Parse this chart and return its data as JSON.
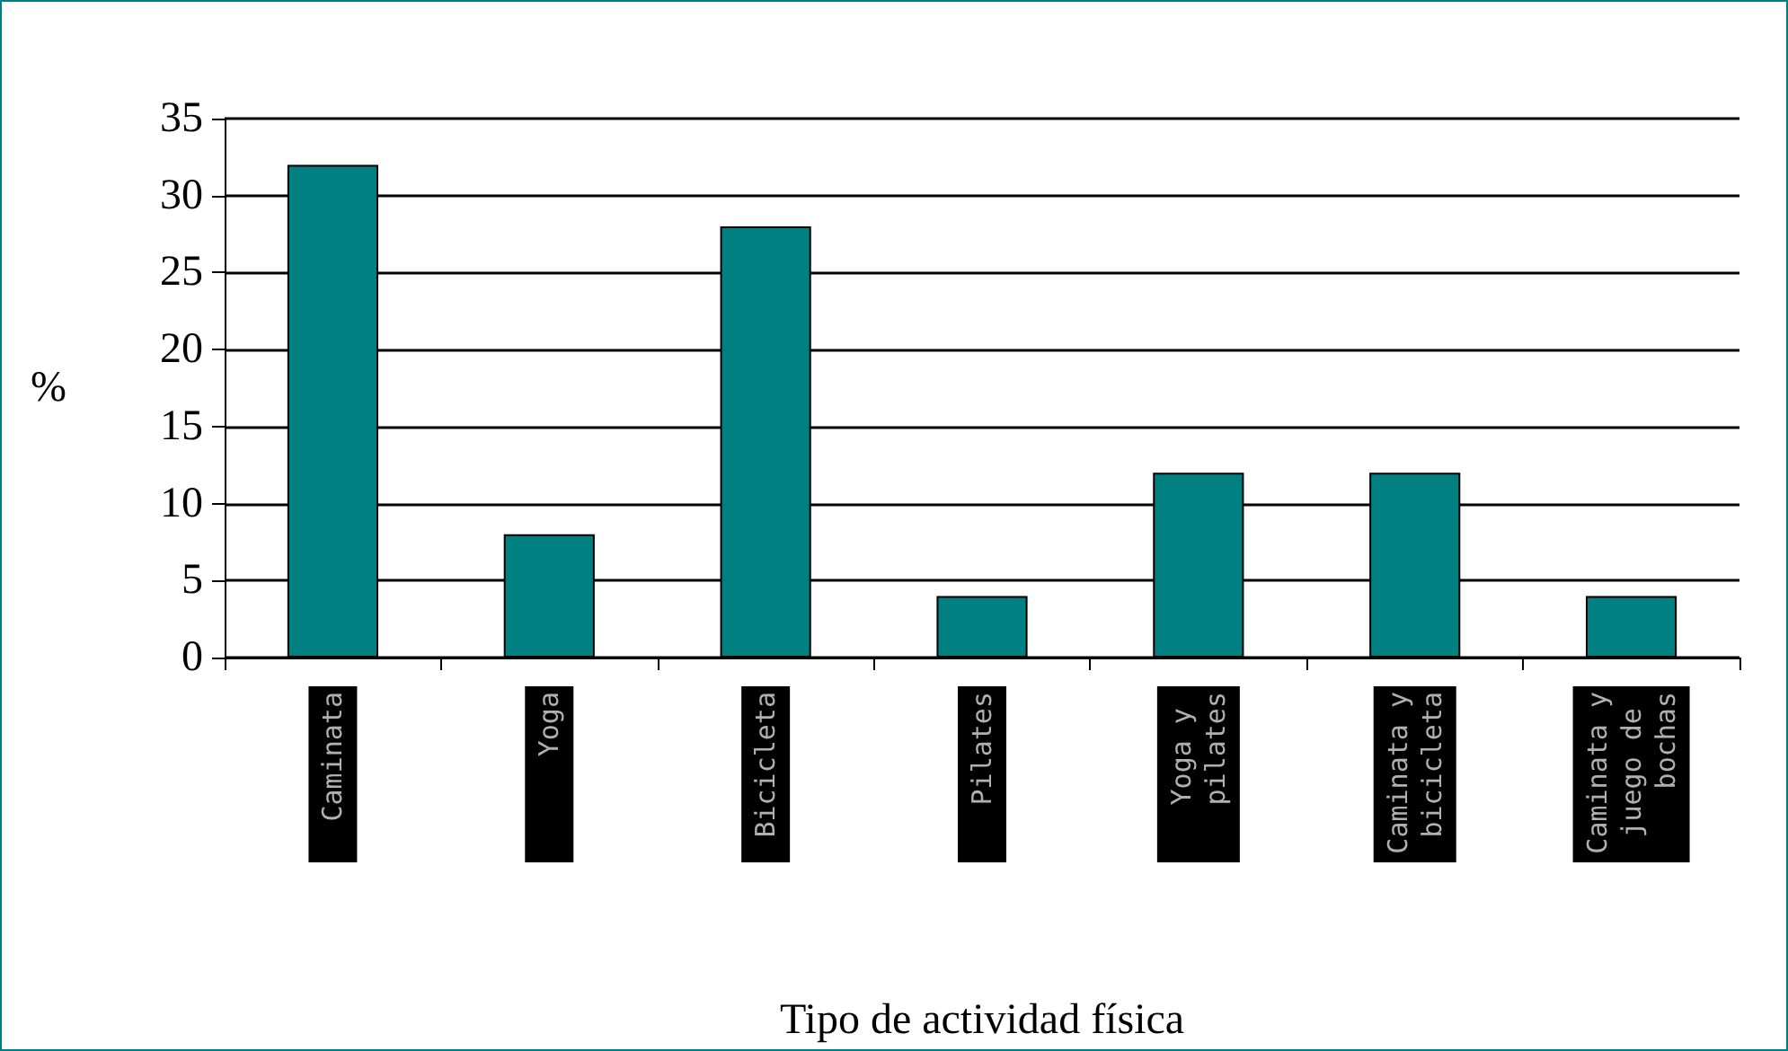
{
  "chart_data": {
    "type": "bar",
    "categories": [
      "Caminata",
      "Yoga",
      "Bicicleta",
      "Pilates",
      "Yoga y pilates",
      "Caminata y bicicleta",
      "Caminata y juego de bochas"
    ],
    "values": [
      32,
      8,
      28,
      4,
      12,
      12,
      4
    ],
    "color": "#008080",
    "xlabel": "Tipo de actividad física",
    "ylabel": "%",
    "ylim": [
      0,
      35
    ],
    "yticks": [
      0,
      5,
      10,
      15,
      20,
      25,
      30,
      35
    ],
    "grid": "y"
  }
}
